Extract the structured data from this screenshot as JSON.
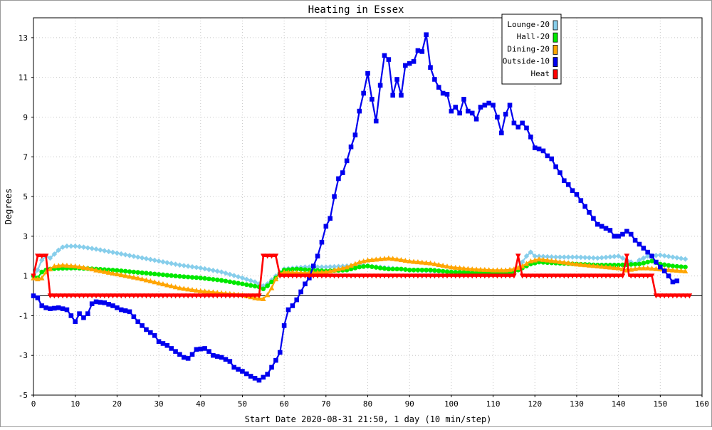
{
  "chart_data": {
    "type": "line",
    "title": "Heating in Essex",
    "xlabel": "Start Date 2020-08-31 21:50, 1 day (10 min/step)",
    "ylabel": "Degrees",
    "xlim": [
      0,
      160
    ],
    "ylim": [
      -5,
      14
    ],
    "x_ticks": [
      0,
      10,
      20,
      30,
      40,
      50,
      60,
      70,
      80,
      90,
      100,
      110,
      120,
      130,
      140,
      150,
      160
    ],
    "y_ticks": [
      -5,
      -3,
      -1,
      1,
      3,
      5,
      7,
      9,
      11,
      13
    ],
    "grid": true,
    "legend_position": "top-right",
    "zero_line": true,
    "series": [
      {
        "name": "Lounge-20",
        "color": "#87ceeb",
        "marker": "diamond",
        "points": [
          [
            0,
            1.0
          ],
          [
            1,
            1.3
          ],
          [
            2,
            1.8
          ],
          [
            3,
            2.0
          ],
          [
            4,
            1.9
          ],
          [
            5,
            2.1
          ],
          [
            6,
            2.3
          ],
          [
            7,
            2.45
          ],
          [
            8,
            2.5
          ],
          [
            9,
            2.5
          ],
          [
            10,
            2.5
          ],
          [
            12,
            2.45
          ],
          [
            15,
            2.35
          ],
          [
            20,
            2.15
          ],
          [
            25,
            1.95
          ],
          [
            30,
            1.75
          ],
          [
            35,
            1.55
          ],
          [
            40,
            1.4
          ],
          [
            45,
            1.2
          ],
          [
            50,
            0.9
          ],
          [
            53,
            0.7
          ],
          [
            55,
            0.5
          ],
          [
            56,
            0.6
          ],
          [
            57,
            0.8
          ],
          [
            58,
            1.0
          ],
          [
            60,
            1.35
          ],
          [
            65,
            1.45
          ],
          [
            70,
            1.45
          ],
          [
            75,
            1.5
          ],
          [
            78,
            1.55
          ],
          [
            80,
            1.5
          ],
          [
            85,
            1.4
          ],
          [
            90,
            1.3
          ],
          [
            95,
            1.25
          ],
          [
            100,
            1.2
          ],
          [
            105,
            1.2
          ],
          [
            110,
            1.2
          ],
          [
            115,
            1.25
          ],
          [
            116,
            1.4
          ],
          [
            117,
            1.7
          ],
          [
            118,
            2.0
          ],
          [
            119,
            2.2
          ],
          [
            120,
            2.0
          ],
          [
            125,
            1.95
          ],
          [
            130,
            1.95
          ],
          [
            135,
            1.9
          ],
          [
            140,
            2.0
          ],
          [
            142,
            1.8
          ],
          [
            144,
            1.6
          ],
          [
            145,
            1.8
          ],
          [
            147,
            2.0
          ],
          [
            150,
            2.05
          ],
          [
            153,
            1.95
          ],
          [
            156,
            1.85
          ]
        ]
      },
      {
        "name": "Hall-20",
        "color": "#00e800",
        "marker": "circle",
        "points": [
          [
            0,
            1.0
          ],
          [
            1,
            0.9
          ],
          [
            2,
            1.2
          ],
          [
            3,
            1.3
          ],
          [
            4,
            1.35
          ],
          [
            6,
            1.38
          ],
          [
            10,
            1.4
          ],
          [
            15,
            1.35
          ],
          [
            20,
            1.28
          ],
          [
            25,
            1.18
          ],
          [
            30,
            1.08
          ],
          [
            35,
            0.98
          ],
          [
            40,
            0.9
          ],
          [
            45,
            0.78
          ],
          [
            50,
            0.6
          ],
          [
            54,
            0.45
          ],
          [
            55,
            0.35
          ],
          [
            56,
            0.5
          ],
          [
            58,
            0.9
          ],
          [
            59,
            1.15
          ],
          [
            60,
            1.3
          ],
          [
            63,
            1.35
          ],
          [
            66,
            1.3
          ],
          [
            70,
            1.25
          ],
          [
            75,
            1.3
          ],
          [
            78,
            1.45
          ],
          [
            80,
            1.5
          ],
          [
            83,
            1.4
          ],
          [
            85,
            1.35
          ],
          [
            88,
            1.35
          ],
          [
            90,
            1.3
          ],
          [
            95,
            1.3
          ],
          [
            100,
            1.2
          ],
          [
            105,
            1.15
          ],
          [
            110,
            1.15
          ],
          [
            114,
            1.15
          ],
          [
            115,
            1.2
          ],
          [
            117,
            1.4
          ],
          [
            119,
            1.6
          ],
          [
            121,
            1.7
          ],
          [
            125,
            1.65
          ],
          [
            130,
            1.6
          ],
          [
            135,
            1.55
          ],
          [
            140,
            1.55
          ],
          [
            145,
            1.6
          ],
          [
            148,
            1.75
          ],
          [
            150,
            1.6
          ],
          [
            153,
            1.5
          ],
          [
            156,
            1.45
          ]
        ]
      },
      {
        "name": "Dining-20",
        "color": "#ffa500",
        "marker": "triangle",
        "points": [
          [
            0,
            0.9
          ],
          [
            1,
            0.85
          ],
          [
            2,
            0.9
          ],
          [
            3,
            1.2
          ],
          [
            5,
            1.5
          ],
          [
            7,
            1.55
          ],
          [
            10,
            1.5
          ],
          [
            13,
            1.4
          ],
          [
            15,
            1.3
          ],
          [
            20,
            1.1
          ],
          [
            25,
            0.9
          ],
          [
            30,
            0.65
          ],
          [
            35,
            0.4
          ],
          [
            40,
            0.25
          ],
          [
            45,
            0.15
          ],
          [
            50,
            0.05
          ],
          [
            53,
            -0.1
          ],
          [
            55,
            -0.15
          ],
          [
            56,
            0.05
          ],
          [
            57,
            0.4
          ],
          [
            58,
            0.85
          ],
          [
            59,
            1.1
          ],
          [
            60,
            1.2
          ],
          [
            65,
            1.15
          ],
          [
            70,
            1.2
          ],
          [
            75,
            1.45
          ],
          [
            78,
            1.7
          ],
          [
            80,
            1.8
          ],
          [
            85,
            1.9
          ],
          [
            87,
            1.85
          ],
          [
            90,
            1.75
          ],
          [
            95,
            1.65
          ],
          [
            100,
            1.45
          ],
          [
            105,
            1.35
          ],
          [
            110,
            1.3
          ],
          [
            113,
            1.3
          ],
          [
            115,
            1.35
          ],
          [
            117,
            1.5
          ],
          [
            119,
            1.75
          ],
          [
            121,
            1.85
          ],
          [
            125,
            1.75
          ],
          [
            130,
            1.6
          ],
          [
            135,
            1.5
          ],
          [
            140,
            1.4
          ],
          [
            142,
            1.3
          ],
          [
            145,
            1.4
          ],
          [
            147,
            1.4
          ],
          [
            150,
            1.35
          ],
          [
            153,
            1.3
          ],
          [
            156,
            1.25
          ]
        ]
      },
      {
        "name": "Outside-10",
        "color": "#0000ee",
        "marker": "square",
        "points": [
          [
            0,
            0.0
          ],
          [
            1,
            -0.1
          ],
          [
            2,
            -0.5
          ],
          [
            3,
            -0.6
          ],
          [
            4,
            -0.65
          ],
          [
            6,
            -0.6
          ],
          [
            8,
            -0.7
          ],
          [
            9,
            -1.0
          ],
          [
            10,
            -1.3
          ],
          [
            11,
            -0.9
          ],
          [
            12,
            -1.1
          ],
          [
            13,
            -0.9
          ],
          [
            14,
            -0.4
          ],
          [
            15,
            -0.3
          ],
          [
            17,
            -0.35
          ],
          [
            19,
            -0.5
          ],
          [
            21,
            -0.7
          ],
          [
            23,
            -0.8
          ],
          [
            25,
            -1.3
          ],
          [
            27,
            -1.7
          ],
          [
            29,
            -2.0
          ],
          [
            30,
            -2.3
          ],
          [
            32,
            -2.5
          ],
          [
            34,
            -2.8
          ],
          [
            36,
            -3.1
          ],
          [
            37,
            -3.15
          ],
          [
            38,
            -2.95
          ],
          [
            39,
            -2.7
          ],
          [
            41,
            -2.65
          ],
          [
            42,
            -2.8
          ],
          [
            43,
            -3.0
          ],
          [
            45,
            -3.1
          ],
          [
            47,
            -3.3
          ],
          [
            48,
            -3.6
          ],
          [
            50,
            -3.8
          ],
          [
            52,
            -4.05
          ],
          [
            54,
            -4.25
          ],
          [
            56,
            -3.95
          ],
          [
            57,
            -3.6
          ],
          [
            58,
            -3.25
          ],
          [
            59,
            -2.85
          ],
          [
            60,
            -1.5
          ],
          [
            61,
            -0.7
          ],
          [
            62,
            -0.5
          ],
          [
            63,
            -0.2
          ],
          [
            64,
            0.2
          ],
          [
            65,
            0.6
          ],
          [
            66,
            0.9
          ],
          [
            67,
            1.5
          ],
          [
            68,
            2.0
          ],
          [
            69,
            2.7
          ],
          [
            70,
            3.5
          ],
          [
            71,
            3.9
          ],
          [
            72,
            5.0
          ],
          [
            73,
            5.9
          ],
          [
            74,
            6.2
          ],
          [
            75,
            6.8
          ],
          [
            76,
            7.5
          ],
          [
            77,
            8.1
          ],
          [
            78,
            9.3
          ],
          [
            79,
            10.2
          ],
          [
            80,
            11.2
          ],
          [
            81,
            9.9
          ],
          [
            82,
            8.8
          ],
          [
            83,
            10.6
          ],
          [
            84,
            12.1
          ],
          [
            85,
            11.9
          ],
          [
            86,
            10.1
          ],
          [
            87,
            10.9
          ],
          [
            88,
            10.1
          ],
          [
            89,
            11.6
          ],
          [
            90,
            11.7
          ],
          [
            91,
            11.8
          ],
          [
            92,
            12.35
          ],
          [
            93,
            12.3
          ],
          [
            94,
            13.15
          ],
          [
            95,
            11.5
          ],
          [
            96,
            10.9
          ],
          [
            97,
            10.5
          ],
          [
            98,
            10.2
          ],
          [
            99,
            10.15
          ],
          [
            100,
            9.3
          ],
          [
            101,
            9.5
          ],
          [
            102,
            9.2
          ],
          [
            103,
            9.9
          ],
          [
            104,
            9.3
          ],
          [
            105,
            9.2
          ],
          [
            106,
            8.9
          ],
          [
            107,
            9.5
          ],
          [
            108,
            9.6
          ],
          [
            109,
            9.7
          ],
          [
            110,
            9.6
          ],
          [
            111,
            9.0
          ],
          [
            112,
            8.2
          ],
          [
            113,
            9.15
          ],
          [
            114,
            9.6
          ],
          [
            115,
            8.7
          ],
          [
            116,
            8.5
          ],
          [
            117,
            8.7
          ],
          [
            118,
            8.45
          ],
          [
            119,
            8.0
          ],
          [
            120,
            7.45
          ],
          [
            121,
            7.4
          ],
          [
            122,
            7.3
          ],
          [
            123,
            7.05
          ],
          [
            124,
            6.9
          ],
          [
            125,
            6.5
          ],
          [
            126,
            6.2
          ],
          [
            127,
            5.8
          ],
          [
            128,
            5.6
          ],
          [
            129,
            5.3
          ],
          [
            130,
            5.1
          ],
          [
            131,
            4.8
          ],
          [
            132,
            4.5
          ],
          [
            133,
            4.2
          ],
          [
            134,
            3.9
          ],
          [
            135,
            3.6
          ],
          [
            136,
            3.5
          ],
          [
            137,
            3.4
          ],
          [
            138,
            3.3
          ],
          [
            139,
            3.0
          ],
          [
            140,
            3.0
          ],
          [
            141,
            3.1
          ],
          [
            142,
            3.25
          ],
          [
            143,
            3.1
          ],
          [
            144,
            2.8
          ],
          [
            145,
            2.6
          ],
          [
            146,
            2.4
          ],
          [
            147,
            2.2
          ],
          [
            148,
            2.0
          ],
          [
            149,
            1.7
          ],
          [
            150,
            1.45
          ],
          [
            151,
            1.25
          ],
          [
            152,
            1.0
          ],
          [
            153,
            0.7
          ],
          [
            154,
            0.75
          ]
        ]
      },
      {
        "name": "Heat",
        "color": "#ff0000",
        "marker": "triangle-down",
        "points": [
          [
            0,
            1
          ],
          [
            1,
            2
          ],
          [
            2,
            2
          ],
          [
            3,
            2
          ],
          [
            4,
            0
          ],
          [
            54,
            0
          ],
          [
            55,
            2
          ],
          [
            58,
            2
          ],
          [
            59,
            1
          ],
          [
            115,
            1
          ],
          [
            116,
            2
          ],
          [
            117,
            1
          ],
          [
            141,
            1
          ],
          [
            142,
            2
          ],
          [
            142.5,
            1
          ],
          [
            148,
            1
          ],
          [
            149,
            0
          ],
          [
            157,
            0
          ]
        ]
      }
    ]
  }
}
